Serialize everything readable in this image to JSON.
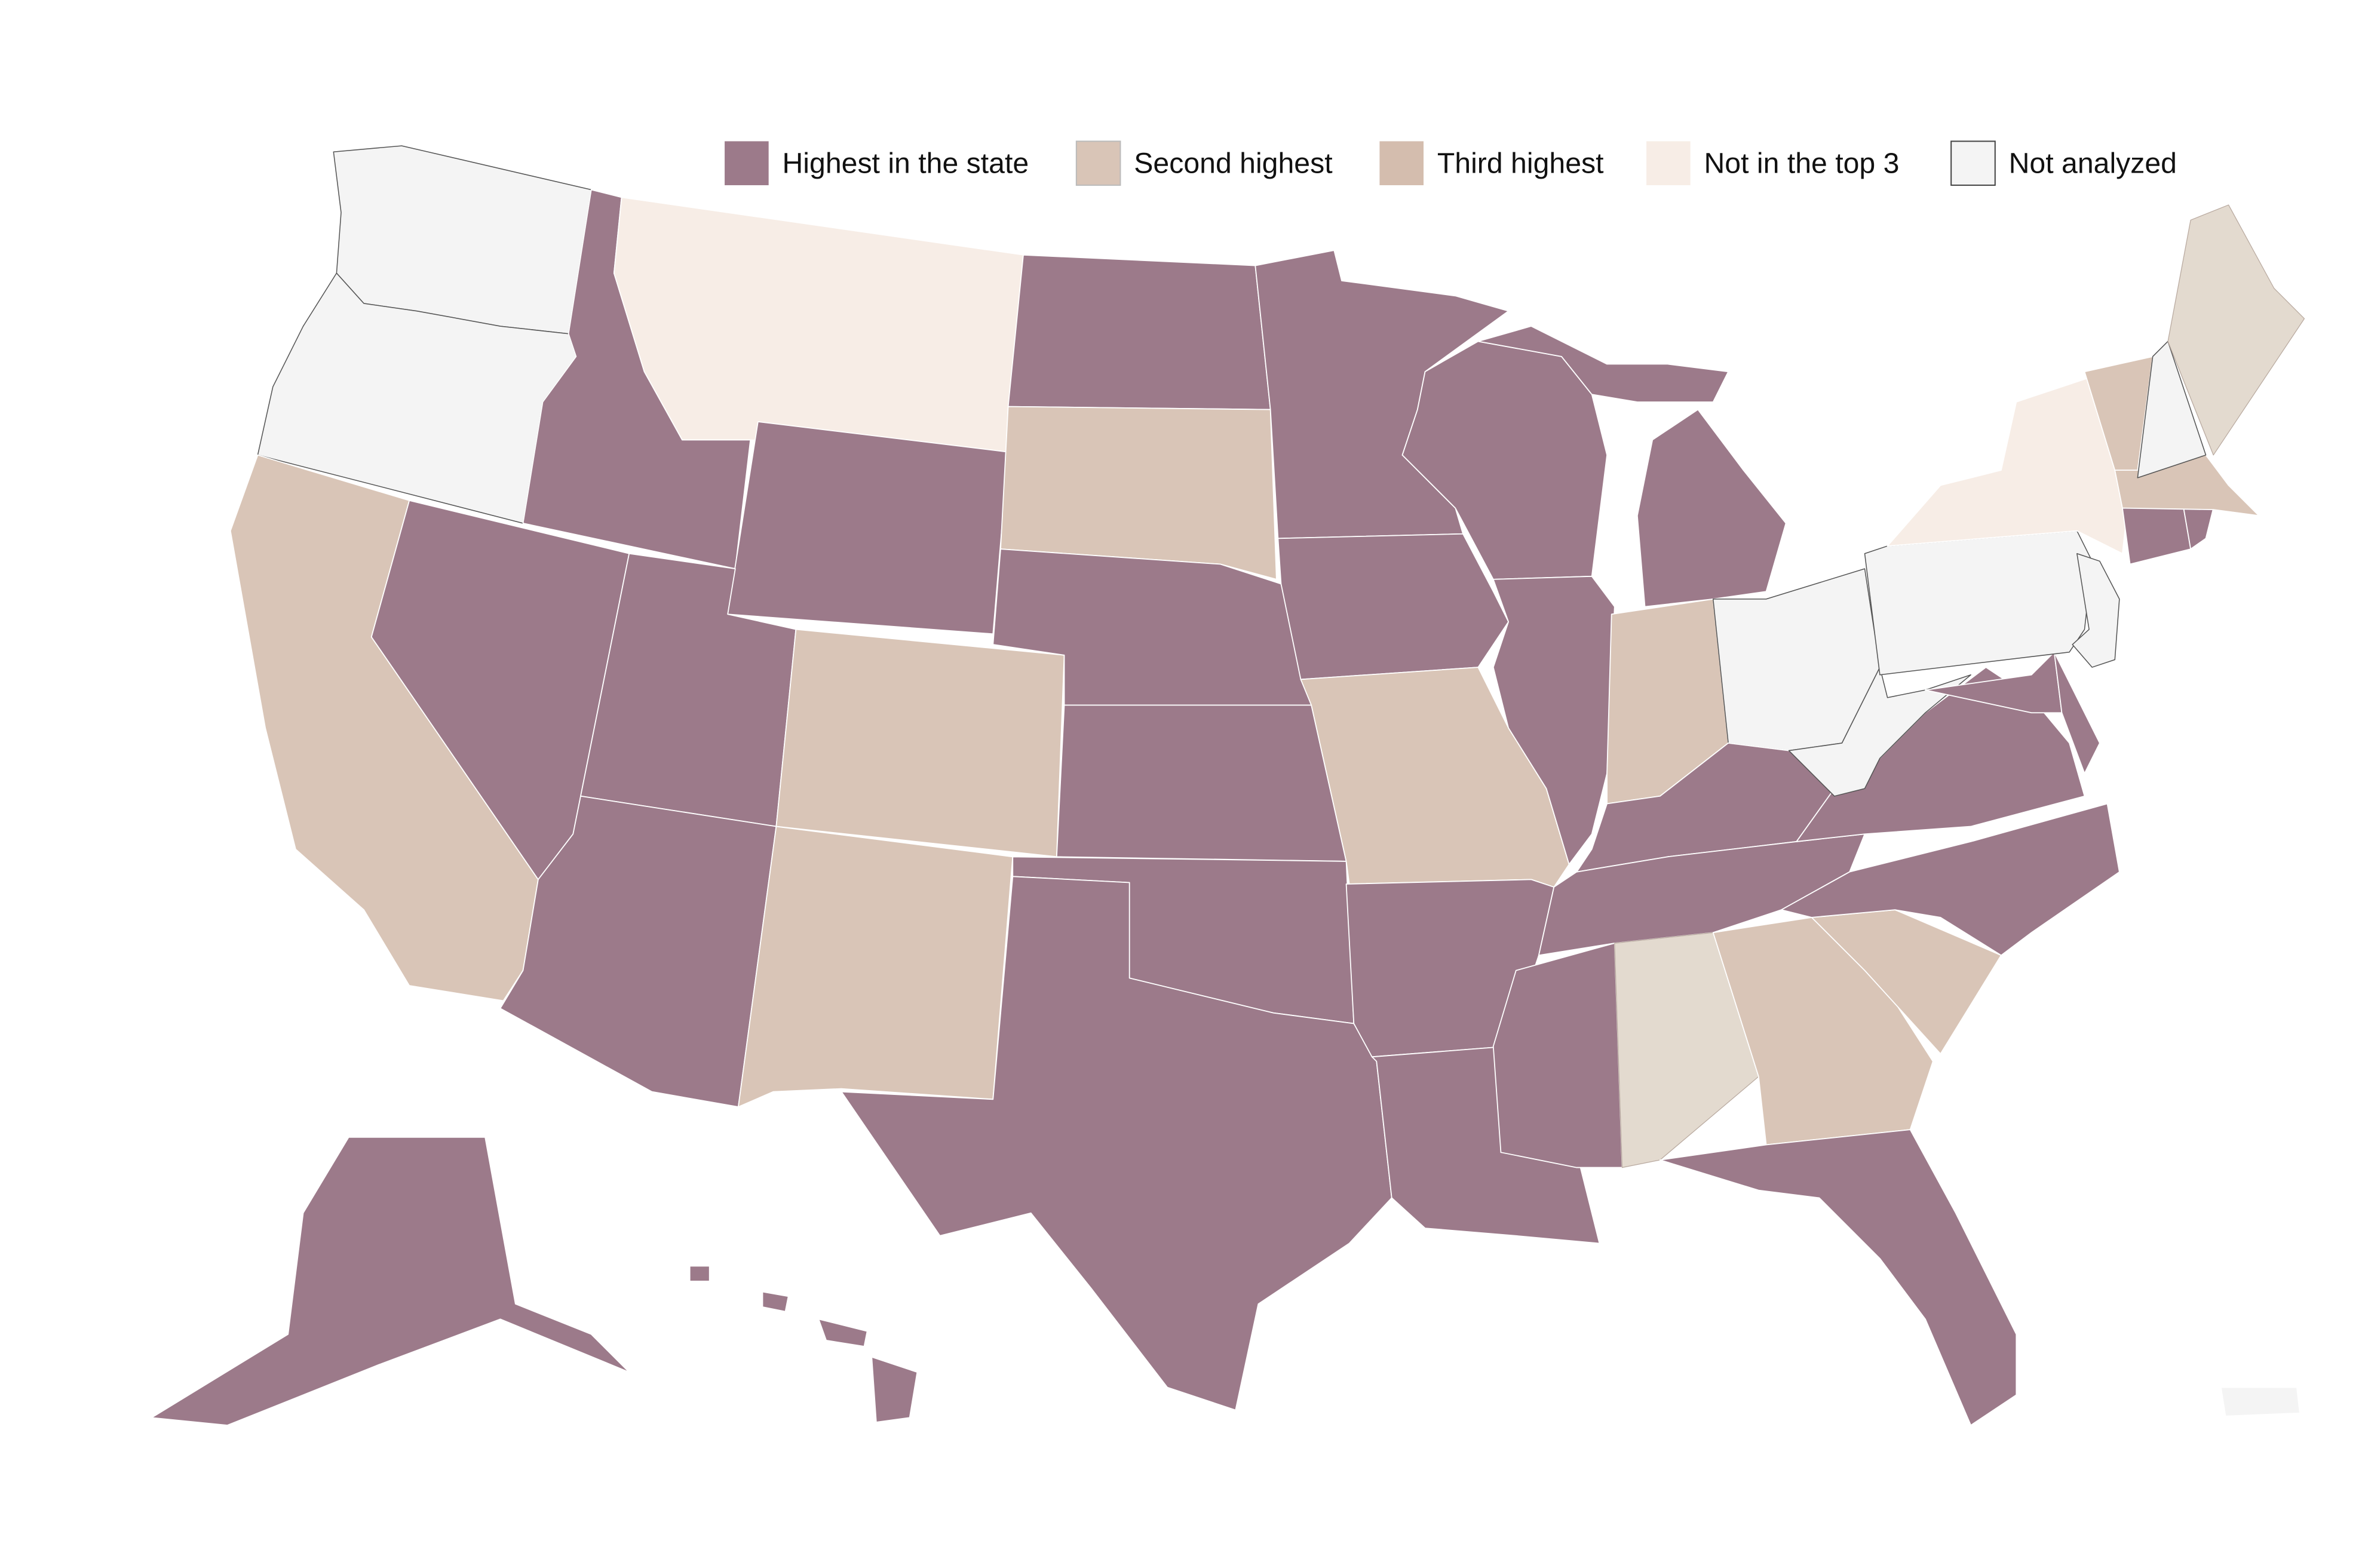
{
  "legend": {
    "items": [
      {
        "key": "highest",
        "label": "Highest in the state",
        "color": "#9c7a8a"
      },
      {
        "key": "second",
        "label": "Second highest",
        "color": "#d9c5b7"
      },
      {
        "key": "third",
        "label": "Third highest",
        "color": "#d4bdae"
      },
      {
        "key": "not_top3",
        "label": "Not in the top 3",
        "color": "#f7ede6"
      },
      {
        "key": "not_analyzed",
        "label": "Not analyzed",
        "color": "#f4f4f4"
      }
    ]
  },
  "map": {
    "extra_colors": {
      "other_tone": "#e3dacf"
    },
    "states": {
      "WA": "not_analyzed",
      "OR": "not_analyzed",
      "CA": "second",
      "NV": "highest",
      "ID": "highest",
      "MT": "not_top3",
      "WY": "highest",
      "UT": "highest",
      "AZ": "highest",
      "CO": "second",
      "NM": "second",
      "ND": "highest",
      "SD": "second",
      "NE": "highest",
      "KS": "highest",
      "OK": "highest",
      "TX": "highest",
      "MN": "highest",
      "IA": "highest",
      "MO": "second",
      "AR": "highest",
      "LA": "highest",
      "WI": "highest",
      "IL": "highest",
      "MI": "highest",
      "IN": "second",
      "OH": "not_analyzed",
      "KY": "highest",
      "TN": "highest",
      "MS": "highest",
      "AL": "other_tone",
      "GA": "second",
      "FL": "highest",
      "SC": "second",
      "NC": "highest",
      "VA": "highest",
      "WV": "not_analyzed",
      "MD": "highest",
      "DE": "highest",
      "PA": "not_analyzed",
      "NJ": "not_analyzed",
      "NY": "not_top3",
      "CT": "highest",
      "RI": "highest",
      "MA": "second",
      "VT": "second",
      "NH": "not_analyzed",
      "ME": "other_tone",
      "AK": "highest",
      "HI": "highest",
      "PR": "not_analyzed"
    }
  }
}
